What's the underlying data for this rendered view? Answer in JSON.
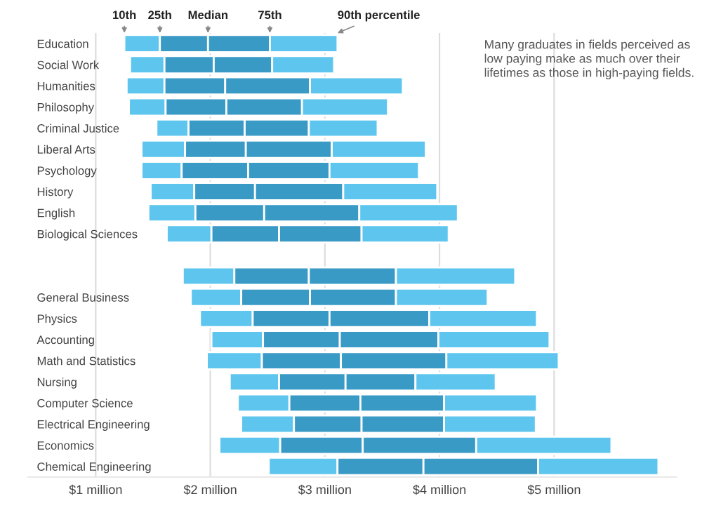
{
  "chart_data": {
    "type": "bar",
    "orientation": "horizontal",
    "categories": [
      "Education",
      "Social Work",
      "Humanities",
      "Philosophy",
      "Criminal Justice",
      "Liberal Arts",
      "Psychology",
      "History",
      "English",
      "Biological Sciences",
      null,
      null,
      "General Business",
      "Physics",
      "Accounting",
      "Math and Statistics",
      "Nursing",
      "Computer Science",
      "Electrical Engineering",
      "Economics",
      "Chemical Engineering"
    ],
    "series": [
      {
        "color": "#5ec6ee",
        "base": [
          1.25,
          1.3,
          1.27,
          1.29,
          1.53,
          1.4,
          1.4,
          1.48,
          1.46,
          1.62,
          null,
          1.76,
          1.83,
          1.91,
          2.01,
          1.97,
          2.17,
          2.24,
          2.27,
          2.08,
          2.51
        ],
        "values": [
          0.31,
          0.3,
          0.33,
          0.32,
          0.28,
          0.38,
          0.35,
          0.38,
          0.41,
          0.39,
          null,
          0.45,
          0.44,
          0.46,
          0.45,
          0.48,
          0.43,
          0.45,
          0.46,
          0.53,
          0.6
        ]
      },
      {
        "color": "#3a9ac6",
        "base": [
          1.56,
          1.6,
          1.6,
          1.61,
          1.81,
          1.78,
          1.75,
          1.86,
          1.87,
          2.01,
          null,
          2.21,
          2.27,
          2.37,
          2.46,
          2.45,
          2.6,
          2.69,
          2.73,
          2.61,
          3.11
        ],
        "values": [
          0.42,
          0.43,
          0.53,
          0.53,
          0.49,
          0.53,
          0.58,
          0.53,
          0.6,
          0.59,
          null,
          0.65,
          0.6,
          0.67,
          0.67,
          0.69,
          0.58,
          0.62,
          0.59,
          0.72,
          0.75
        ]
      },
      {
        "color": "#3a9ac6",
        "base": [
          1.98,
          2.03,
          2.13,
          2.14,
          2.3,
          2.31,
          2.33,
          2.39,
          2.47,
          2.6,
          null,
          2.86,
          2.87,
          3.04,
          3.13,
          3.14,
          3.18,
          3.31,
          3.32,
          3.33,
          3.86
        ],
        "values": [
          0.54,
          0.51,
          0.74,
          0.66,
          0.56,
          0.75,
          0.71,
          0.77,
          0.83,
          0.72,
          null,
          0.76,
          0.75,
          0.87,
          0.86,
          0.92,
          0.61,
          0.73,
          0.72,
          0.99,
          1.0
        ]
      },
      {
        "color": "#5ec6ee",
        "base": [
          2.52,
          2.54,
          2.87,
          2.8,
          2.86,
          3.06,
          3.04,
          3.16,
          3.3,
          3.32,
          null,
          3.62,
          3.62,
          3.91,
          3.99,
          4.06,
          3.79,
          4.04,
          4.04,
          4.32,
          4.86
        ],
        "values": [
          0.59,
          0.54,
          0.81,
          0.75,
          0.6,
          0.82,
          0.78,
          0.82,
          0.86,
          0.76,
          null,
          1.04,
          0.8,
          0.94,
          0.97,
          0.98,
          0.7,
          0.81,
          0.8,
          1.18,
          1.05
        ]
      }
    ],
    "xlim": [
      0.41,
      6.07
    ],
    "xticks": [
      {
        "value": 1,
        "label": "$1 million"
      },
      {
        "value": 2,
        "label": "$2 million"
      },
      {
        "value": 3,
        "label": "$3 million"
      },
      {
        "value": 4,
        "label": "$4 million"
      },
      {
        "value": 5,
        "label": "$5 million"
      }
    ],
    "grid": "x",
    "annotations": [
      "10th",
      "25th",
      "Median",
      "75th",
      "90th percentile",
      "Many graduates in fields perceived as low paying make as much over their lifetimes as those in high-paying fields."
    ]
  }
}
